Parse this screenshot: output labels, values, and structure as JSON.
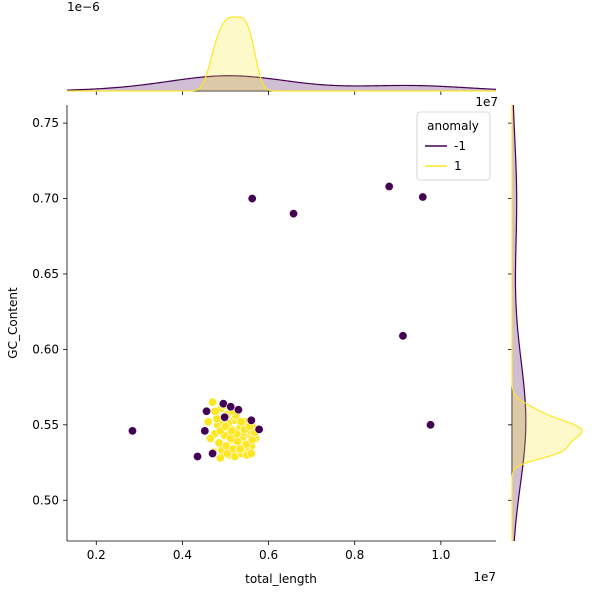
{
  "chart_data": {
    "type": "scatter",
    "xlabel": "total_length",
    "ylabel": "GC_Content",
    "x_offset_label": "1e7",
    "top_marginal_offset_label": "1e−6",
    "right_marginal_offset_label": "1e7",
    "xlim": [
      1320000,
      11280000
    ],
    "ylim": [
      0.473,
      0.762
    ],
    "x_ticks": [
      {
        "value": 2000000,
        "label": "0.2"
      },
      {
        "value": 4000000,
        "label": "0.4"
      },
      {
        "value": 6000000,
        "label": "0.6"
      },
      {
        "value": 8000000,
        "label": "0.8"
      },
      {
        "value": 10000000,
        "label": "1.0"
      }
    ],
    "y_ticks": [
      {
        "value": 0.5,
        "label": "0.50"
      },
      {
        "value": 0.55,
        "label": "0.55"
      },
      {
        "value": 0.6,
        "label": "0.60"
      },
      {
        "value": 0.65,
        "label": "0.65"
      },
      {
        "value": 0.7,
        "label": "0.70"
      },
      {
        "value": 0.75,
        "label": "0.75"
      }
    ],
    "grid": false,
    "legend": {
      "title": "anomaly",
      "placement": "top-right",
      "entries": [
        {
          "label": "-1",
          "color": "#440154"
        },
        {
          "label": "1",
          "color": "#fde725"
        }
      ]
    },
    "series": [
      {
        "name": "-1",
        "color": "#440154",
        "x": [
          5620000,
          6580000,
          8800000,
          9580000,
          9120000,
          9760000,
          2840000,
          4350000,
          4520000,
          4950000,
          5120000,
          5780000,
          4700000,
          5600000,
          4560000,
          4980000,
          5300000
        ],
        "y": [
          0.7,
          0.69,
          0.708,
          0.701,
          0.609,
          0.55,
          0.546,
          0.529,
          0.546,
          0.564,
          0.562,
          0.547,
          0.531,
          0.553,
          0.559,
          0.555,
          0.56
        ]
      },
      {
        "name": "1",
        "color": "#fde725",
        "x": [
          4700000,
          4780000,
          4820000,
          4900000,
          4950000,
          5000000,
          5050000,
          5100000,
          5150000,
          5200000,
          5250000,
          5300000,
          5350000,
          5400000,
          5450000,
          5500000,
          5550000,
          5600000,
          5650000,
          5700000,
          4750000,
          4850000,
          4920000,
          4980000,
          5020000,
          5080000,
          5120000,
          5180000,
          5220000,
          5280000,
          5320000,
          5380000,
          5420000,
          5480000,
          5520000,
          5580000,
          4600000,
          4650000,
          4880000,
          5060000,
          5240000,
          5460000,
          5620000,
          4720000,
          4960000,
          5160000,
          5340000,
          5500000,
          5680000,
          4800000,
          5040000,
          5260000,
          5440000,
          5560000,
          4880000,
          5000000,
          5140000,
          5360000,
          5600000,
          4760000
        ],
        "y": [
          0.565,
          0.558,
          0.55,
          0.561,
          0.552,
          0.545,
          0.557,
          0.548,
          0.54,
          0.553,
          0.546,
          0.538,
          0.549,
          0.542,
          0.535,
          0.55,
          0.544,
          0.536,
          0.548,
          0.541,
          0.544,
          0.538,
          0.533,
          0.543,
          0.536,
          0.53,
          0.541,
          0.534,
          0.529,
          0.539,
          0.533,
          0.531,
          0.545,
          0.537,
          0.532,
          0.546,
          0.552,
          0.541,
          0.528,
          0.551,
          0.556,
          0.552,
          0.54,
          0.532,
          0.563,
          0.559,
          0.534,
          0.53,
          0.545,
          0.554,
          0.531,
          0.544,
          0.547,
          0.549,
          0.546,
          0.549,
          0.546,
          0.552,
          0.531,
          0.559
        ]
      }
    ],
    "marginals": {
      "top": {
        "type": "kde",
        "axis": "total_length"
      },
      "right": {
        "type": "kde",
        "axis": "GC_Content"
      }
    }
  }
}
